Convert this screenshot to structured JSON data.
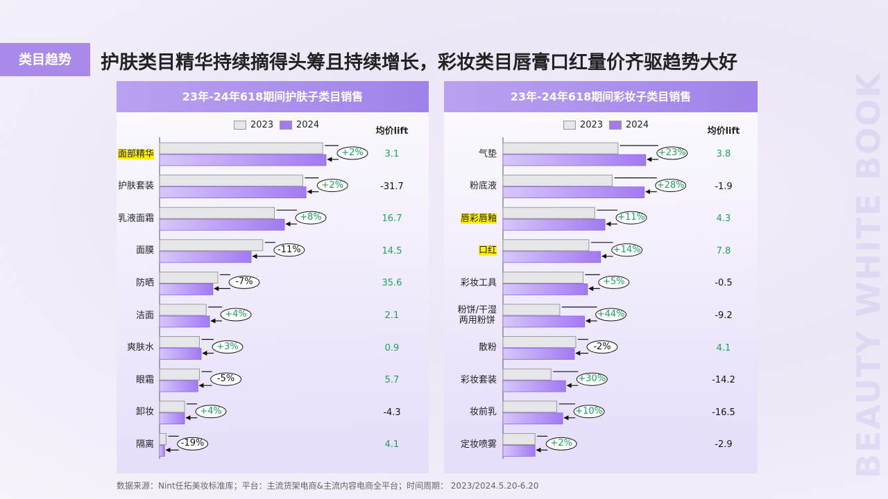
{
  "tag": "类目趋势",
  "headline": "护肤类目精华持续摘得头筹且持续增长，彩妆类目唇膏口红量价齐驱趋势大好",
  "source": "数据来源：Nint任拓美妆标准库；平台：主流货架电商&主流内容电商全平台；时间周期： 2023/2024.5.20-6.20",
  "watermark": "BEAUTY WHITE BOOK",
  "chart_data": [
    {
      "type": "bar",
      "orientation": "horizontal",
      "title": "23年-24年618期间护肤子类目销售",
      "categories": [
        "面部精华",
        "护肤套装",
        "乳液面霜",
        "面膜",
        "防晒",
        "洁面",
        "爽肤水",
        "眼霜",
        "卸妆",
        "隔离"
      ],
      "highlighted_categories": [
        0
      ],
      "xlim": [
        0,
        100
      ],
      "series": [
        {
          "name": "2023",
          "color": "#e6e6e8",
          "values": [
            98,
            86,
            69,
            62,
            35,
            28,
            24,
            24,
            15,
            4
          ]
        },
        {
          "name": "2024",
          "color": "#a27af2",
          "values": [
            100,
            88,
            75,
            55,
            32,
            30,
            25,
            23,
            15,
            3
          ]
        }
      ],
      "growth": [
        2,
        2,
        8,
        -11,
        -7,
        4,
        3,
        -5,
        4,
        -19
      ],
      "growth_labels": [
        "+2%",
        "+2%",
        "+8%",
        "-11%",
        "-7%",
        "+4%",
        "+3%",
        "-5%",
        "+4%",
        "-19%"
      ],
      "lift_title": "均价lift",
      "lift": [
        3.1,
        -31.7,
        16.7,
        14.5,
        35.6,
        2.1,
        0.9,
        5.7,
        -4.3,
        4.1
      ]
    },
    {
      "type": "bar",
      "orientation": "horizontal",
      "title": "23年-24年618期间彩妆子类目销售",
      "categories": [
        "气垫",
        "粉底液",
        "唇彩唇釉",
        "口红",
        "彩妆工具",
        "粉饼/干湿\n两用粉饼",
        "散粉",
        "彩妆套装",
        "妆前乳",
        "定妆喷雾"
      ],
      "highlighted_categories": [
        2,
        3
      ],
      "xlim": [
        0,
        100
      ],
      "series": [
        {
          "name": "2023",
          "color": "#e6e6e8",
          "values": [
            79,
            75,
            63,
            59,
            55,
            39,
            50,
            33,
            37,
            22
          ]
        },
        {
          "name": "2024",
          "color": "#a27af2",
          "values": [
            98,
            97,
            70,
            67,
            58,
            56,
            49,
            43,
            41,
            22
          ]
        }
      ],
      "growth": [
        23,
        28,
        11,
        14,
        5,
        44,
        -2,
        30,
        10,
        2
      ],
      "growth_labels": [
        "+23%",
        "+28%",
        "+11%",
        "+14%",
        "+5%",
        "+44%",
        "-2%",
        "+30%",
        "+10%",
        "+2%"
      ],
      "lift_title": "均价lift",
      "lift": [
        3.8,
        -1.9,
        4.3,
        7.8,
        -0.5,
        -9.2,
        4.1,
        -14.2,
        -16.5,
        -2.9
      ]
    }
  ]
}
